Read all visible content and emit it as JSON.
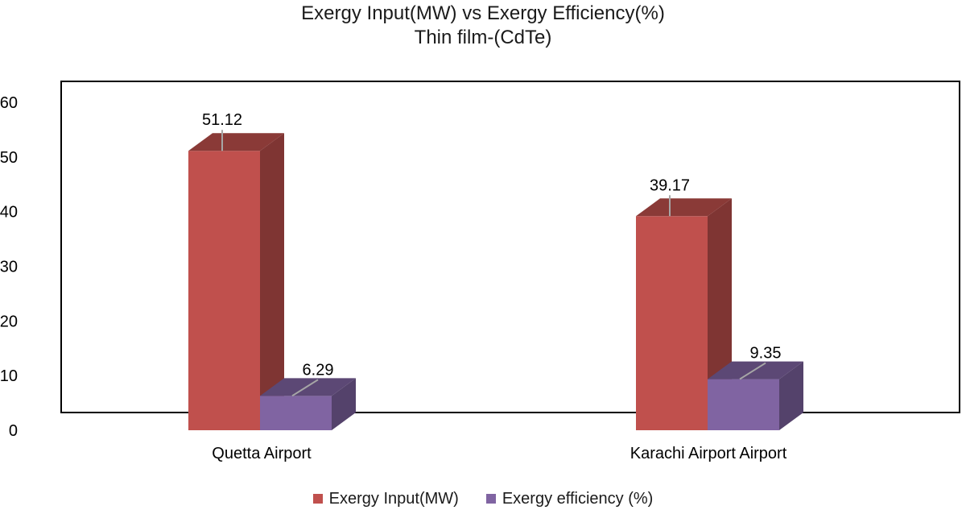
{
  "chart_data": {
    "type": "bar",
    "title": "Exergy Input(MW) vs Exergy Efficiency(%)",
    "subtitle": "Thin film-(CdTe)",
    "categories": [
      "Quetta Airport",
      "Karachi Airport Airport"
    ],
    "series": [
      {
        "name": "Exergy Input(MW)",
        "values": [
          51.12,
          39.17
        ],
        "color": "#c0504d"
      },
      {
        "name": "Exergy efficiency (%)",
        "values": [
          6.29,
          9.35
        ],
        "color": "#8064a2"
      }
    ],
    "data_labels": [
      [
        "51.12",
        "39.17"
      ],
      [
        "6.29",
        "9.35"
      ]
    ],
    "ylim": [
      0,
      60
    ],
    "yticks": [
      0,
      10,
      20,
      30,
      40,
      50,
      60
    ],
    "style": "3d-column",
    "grid": false,
    "legend_position": "bottom"
  }
}
